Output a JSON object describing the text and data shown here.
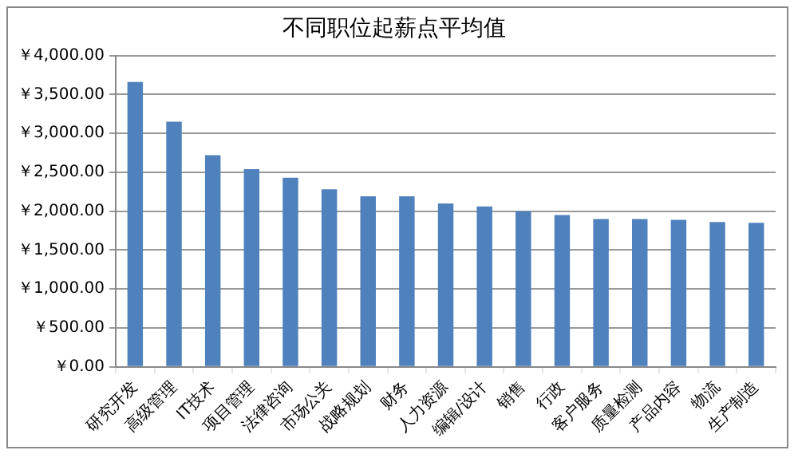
{
  "chart_data": {
    "type": "bar",
    "title": "不同职位起薪点平均值",
    "categories": [
      "研究开发",
      "高级管理",
      "IT技术",
      "项目管理",
      "法律咨询",
      "市场公关",
      "战略规划",
      "财务",
      "人力资源",
      "编辑/设计",
      "销售",
      "行政",
      "客户服务",
      "质量检测",
      "产品内容",
      "物流",
      "生产制造"
    ],
    "values": [
      3660,
      3150,
      2720,
      2540,
      2430,
      2280,
      2190,
      2190,
      2100,
      2060,
      2000,
      1950,
      1900,
      1900,
      1890,
      1860,
      1850
    ],
    "color": "#4f81bd",
    "ylim": [
      0,
      4000
    ],
    "yticks": [
      {
        "value": 0,
        "label": "￥0.00"
      },
      {
        "value": 500,
        "label": "￥500.00"
      },
      {
        "value": 1000,
        "label": "￥1,000.00"
      },
      {
        "value": 1500,
        "label": "￥1,500.00"
      },
      {
        "value": 2000,
        "label": "￥2,000.00"
      },
      {
        "value": 2500,
        "label": "￥2,500.00"
      },
      {
        "value": 3000,
        "label": "￥3,000.00"
      },
      {
        "value": 3500,
        "label": "￥3,500.00"
      },
      {
        "value": 4000,
        "label": "￥4,000.00"
      }
    ],
    "grid": true,
    "legend": false
  }
}
